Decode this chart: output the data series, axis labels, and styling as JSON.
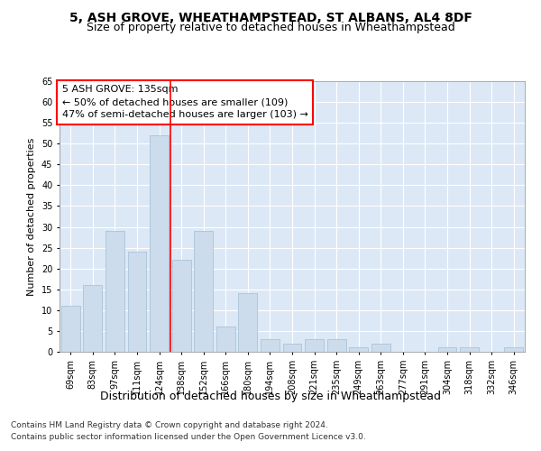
{
  "title1": "5, ASH GROVE, WHEATHAMPSTEAD, ST ALBANS, AL4 8DF",
  "title2": "Size of property relative to detached houses in Wheathampstead",
  "xlabel": "Distribution of detached houses by size in Wheathampstead",
  "ylabel": "Number of detached properties",
  "categories": [
    "69sqm",
    "83sqm",
    "97sqm",
    "111sqm",
    "124sqm",
    "138sqm",
    "152sqm",
    "166sqm",
    "180sqm",
    "194sqm",
    "208sqm",
    "221sqm",
    "235sqm",
    "249sqm",
    "263sqm",
    "277sqm",
    "291sqm",
    "304sqm",
    "318sqm",
    "332sqm",
    "346sqm"
  ],
  "values": [
    11,
    16,
    29,
    24,
    52,
    22,
    29,
    6,
    14,
    3,
    2,
    3,
    3,
    1,
    2,
    0,
    0,
    1,
    1,
    0,
    1
  ],
  "bar_color": "#ccdcec",
  "bar_edge_color": "#aac4d8",
  "vline_x": 4.5,
  "vline_color": "red",
  "annotation_title": "5 ASH GROVE: 135sqm",
  "annotation_line1": "← 50% of detached houses are smaller (109)",
  "annotation_line2": "47% of semi-detached houses are larger (103) →",
  "ylim": [
    0,
    65
  ],
  "yticks": [
    0,
    5,
    10,
    15,
    20,
    25,
    30,
    35,
    40,
    45,
    50,
    55,
    60,
    65
  ],
  "plot_bg_color": "#dce8f5",
  "footer1": "Contains HM Land Registry data © Crown copyright and database right 2024.",
  "footer2": "Contains public sector information licensed under the Open Government Licence v3.0.",
  "title1_fontsize": 10,
  "title2_fontsize": 9,
  "xlabel_fontsize": 9,
  "ylabel_fontsize": 8,
  "tick_fontsize": 7,
  "annotation_fontsize": 8,
  "footer_fontsize": 6.5
}
